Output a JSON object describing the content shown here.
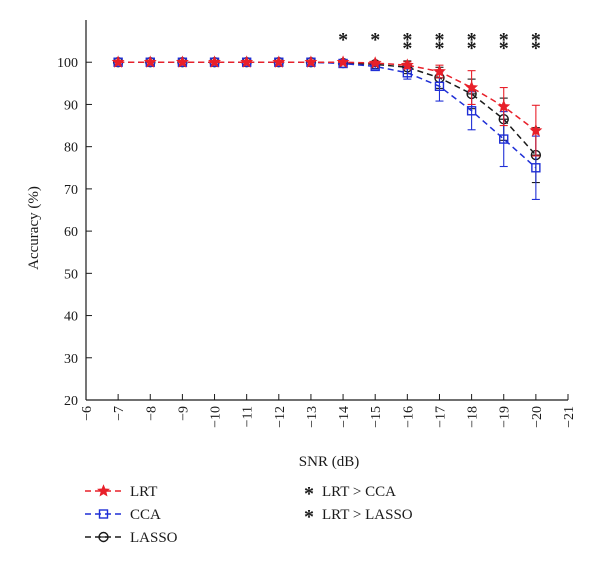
{
  "chart_data": {
    "type": "line",
    "xlabel": "SNR (dB)",
    "ylabel": "Accuracy (%)",
    "xlim": [
      -6,
      -21
    ],
    "ylim": [
      20,
      110
    ],
    "x_ticks": [
      -6,
      -7,
      -8,
      -9,
      -10,
      -11,
      -12,
      -13,
      -14,
      -15,
      -16,
      -17,
      -18,
      -19,
      -20,
      -21
    ],
    "x_tick_labels": [
      "−6",
      "−7",
      "−8",
      "−9",
      "−10",
      "−11",
      "−12",
      "−13",
      "−14",
      "−15",
      "−16",
      "−17",
      "−18",
      "−19",
      "−20",
      "−21"
    ],
    "y_ticks": [
      20,
      30,
      40,
      50,
      60,
      70,
      80,
      90,
      100
    ],
    "y_tick_labels": [
      "20",
      "30",
      "40",
      "50",
      "60",
      "70",
      "80",
      "90",
      "100"
    ],
    "grid": false,
    "x": [
      -7,
      -8,
      -9,
      -10,
      -11,
      -12,
      -13,
      -14,
      -15,
      -16,
      -17,
      -18,
      -19,
      -20
    ],
    "series": [
      {
        "name": "LRT",
        "color": "#e8202a",
        "marker": "star",
        "values": [
          100,
          100,
          100,
          100,
          100,
          100,
          100,
          100,
          99.8,
          99.3,
          97.8,
          94.0,
          89.5,
          83.8
        ],
        "error": [
          0,
          0,
          0,
          0,
          0,
          0,
          0,
          0,
          0.3,
          0.8,
          1.5,
          4.0,
          4.5,
          6.0
        ]
      },
      {
        "name": "CCA",
        "color": "#1f2fd6",
        "marker": "square",
        "values": [
          100,
          100,
          100,
          100,
          100,
          100,
          100,
          99.7,
          99.0,
          97.5,
          94.3,
          88.5,
          81.8,
          75.0
        ],
        "error": [
          0,
          0,
          0,
          0,
          0,
          0,
          0,
          0.2,
          0.6,
          1.5,
          3.5,
          4.5,
          6.5,
          7.5
        ]
      },
      {
        "name": "LASSO",
        "color": "#1a1a1a",
        "marker": "circle",
        "values": [
          100,
          100,
          100,
          100,
          100,
          100,
          100,
          99.8,
          99.5,
          98.8,
          96.3,
          92.5,
          86.5,
          78.0
        ],
        "error": [
          0,
          0,
          0,
          0,
          0,
          0,
          0,
          0.2,
          0.5,
          1.5,
          2.5,
          3.5,
          5.0,
          6.5
        ]
      }
    ],
    "significance": [
      {
        "name": "LRT > CCA",
        "color": "#1f2fd6",
        "x": [
          -14,
          -15,
          -16,
          -17,
          -18,
          -19,
          -20
        ],
        "y": 106
      },
      {
        "name": "LRT > LASSO",
        "color": "#1a1a1a",
        "x": [
          -16,
          -17,
          -18,
          -19,
          -20
        ],
        "y": 104
      }
    ],
    "legend_position": "bottom"
  }
}
